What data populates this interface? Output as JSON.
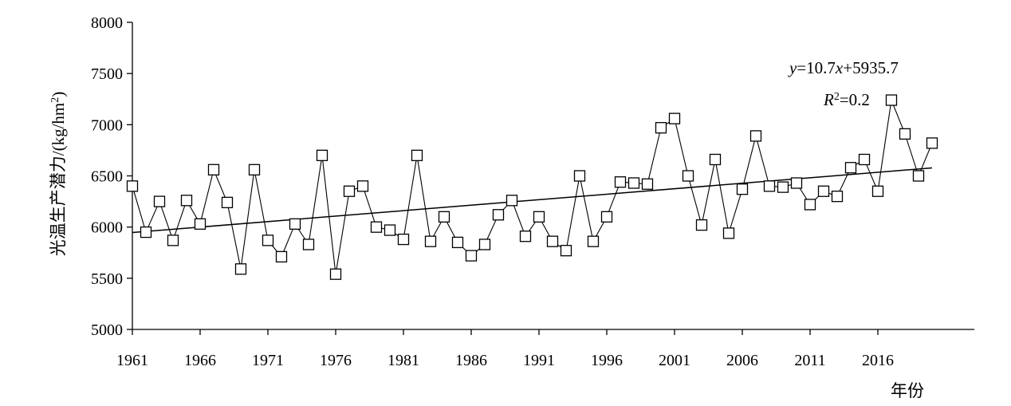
{
  "chart_data": {
    "type": "line",
    "title": "",
    "xlabel": "年份",
    "ylabel": "光温生产潜力/(kg/hm²)",
    "ylabel_parts": {
      "main": "光温生产潜力/(kg/hm",
      "sup": "2",
      "end": ")"
    },
    "xlim": [
      1961,
      2021
    ],
    "ylim": [
      5000,
      8000
    ],
    "x_ticks": [
      1961,
      1966,
      1971,
      1976,
      1981,
      1986,
      1991,
      1996,
      2001,
      2006,
      2011,
      2016
    ],
    "x_tick_labels": [
      "1961",
      "1966",
      "1971",
      "1976",
      "1981",
      "1986",
      "1991",
      "1996",
      "2001",
      "2006",
      "2011",
      "2016"
    ],
    "y_ticks": [
      5000,
      5500,
      6000,
      6500,
      7000,
      7500,
      8000
    ],
    "y_tick_labels": [
      "5000",
      "5500",
      "6000",
      "6500",
      "7000",
      "7500",
      "8000"
    ],
    "grid": false,
    "legend": "none",
    "series": [
      {
        "marker": "open-square",
        "x": [
          1961,
          1962,
          1963,
          1964,
          1965,
          1966,
          1967,
          1968,
          1969,
          1970,
          1971,
          1972,
          1973,
          1974,
          1975,
          1976,
          1977,
          1978,
          1979,
          1980,
          1981,
          1982,
          1983,
          1984,
          1985,
          1986,
          1987,
          1988,
          1989,
          1990,
          1991,
          1992,
          1993,
          1994,
          1995,
          1996,
          1997,
          1998,
          1999,
          2000,
          2001,
          2002,
          2003,
          2004,
          2005,
          2006,
          2007,
          2008,
          2009,
          2010,
          2011,
          2012,
          2013,
          2014,
          2015,
          2016,
          2017,
          2018,
          2019,
          2020
        ],
        "values": [
          6400,
          5950,
          6250,
          5870,
          6260,
          6030,
          6560,
          6240,
          5590,
          6560,
          5870,
          5710,
          6030,
          5830,
          6700,
          5540,
          6350,
          6400,
          6000,
          5970,
          5880,
          6700,
          5860,
          6100,
          5850,
          5720,
          5830,
          6120,
          6260,
          5910,
          6100,
          5860,
          5770,
          6500,
          5860,
          6100,
          6440,
          6430,
          6420,
          6970,
          7060,
          6500,
          6020,
          6660,
          5940,
          6370,
          6890,
          6400,
          6390,
          6430,
          6220,
          6350,
          6300,
          6580,
          6660,
          6350,
          7240,
          6910,
          6500,
          6820
        ]
      }
    ],
    "trendline": {
      "slope": 10.7,
      "intercept": 5935.7,
      "equation_prefix": "y",
      "equation_body": "=10.7",
      "equation_var": "x",
      "equation_suffix": "+5935.7",
      "r2_var": "R",
      "r2_sup": "2",
      "r2_value": "=0.2"
    }
  }
}
